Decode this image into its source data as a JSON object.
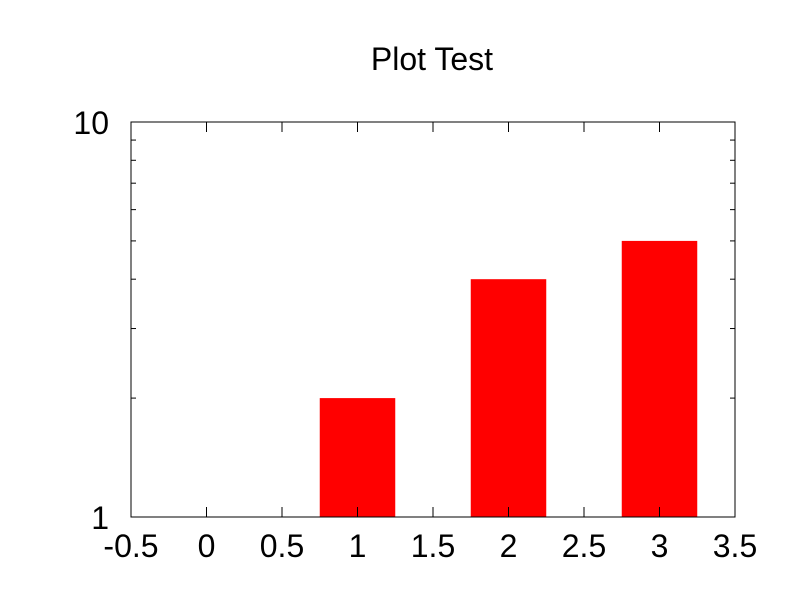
{
  "chart_data": {
    "type": "bar",
    "title": "Plot Test",
    "xlabel": "",
    "ylabel": "",
    "x_scale": "linear",
    "y_scale": "log",
    "xlim": [
      -0.5,
      3.5
    ],
    "ylim": [
      1,
      10
    ],
    "x_ticks": [
      -0.5,
      0,
      0.5,
      1,
      1.5,
      2,
      2.5,
      3,
      3.5
    ],
    "x_tick_labels": [
      "-0.5",
      "0",
      "0.5",
      "1",
      "1.5",
      "2",
      "2.5",
      "3",
      "3.5"
    ],
    "y_ticks": [
      1,
      10
    ],
    "y_tick_labels": [
      "1",
      "10"
    ],
    "y_minor_ticks": [
      2,
      3,
      4,
      5,
      6,
      7,
      8,
      9
    ],
    "bar_width": 0.5,
    "grid": false,
    "legend": "none",
    "series": [
      {
        "color": "#ff0000",
        "points": [
          {
            "x": 0,
            "y": 1
          },
          {
            "x": 1,
            "y": 2
          },
          {
            "x": 2,
            "y": 4
          },
          {
            "x": 3,
            "y": 5
          }
        ]
      }
    ]
  }
}
